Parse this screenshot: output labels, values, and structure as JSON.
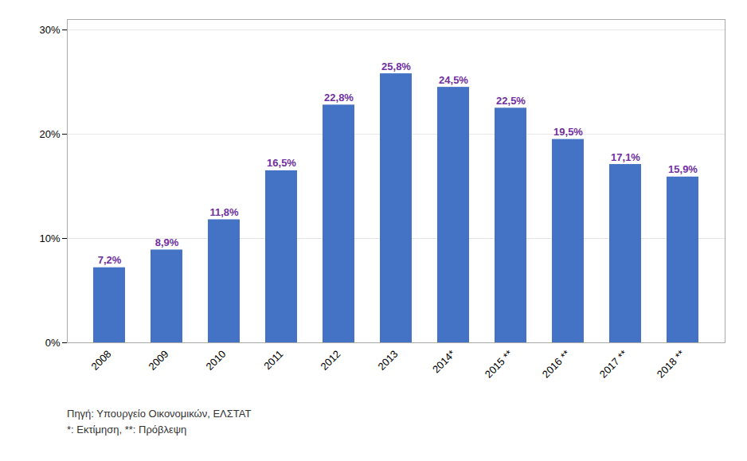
{
  "chart_data": {
    "type": "bar",
    "categories": [
      "2008",
      "2009",
      "2010",
      "2011",
      "2012",
      "2013",
      "2014*",
      "2015 **",
      "2016 **",
      "2017 **",
      "2018 **"
    ],
    "values": [
      7.2,
      8.9,
      11.8,
      16.5,
      22.8,
      25.8,
      24.5,
      22.5,
      19.5,
      17.1,
      15.9
    ],
    "value_labels": [
      "7,2%",
      "8,9%",
      "11,8%",
      "16,5%",
      "22,8%",
      "25,8%",
      "24,5%",
      "22,5%",
      "19,5%",
      "17,1%",
      "15,9%"
    ],
    "data_labels": true,
    "color": "#4472C4",
    "ylim": [
      0,
      31
    ],
    "yticks": [
      {
        "value": 0,
        "label": "0%"
      },
      {
        "value": 10,
        "label": "10%"
      },
      {
        "value": 20,
        "label": "20%"
      },
      {
        "value": 30,
        "label": "30%"
      }
    ],
    "grid": true,
    "annotations": [
      "Πηγή: Υπουργείο Οικονομικών, ΕΛΣΤΑΤ",
      "*: Εκτίμηση, **: Πρόβλεψη"
    ]
  }
}
